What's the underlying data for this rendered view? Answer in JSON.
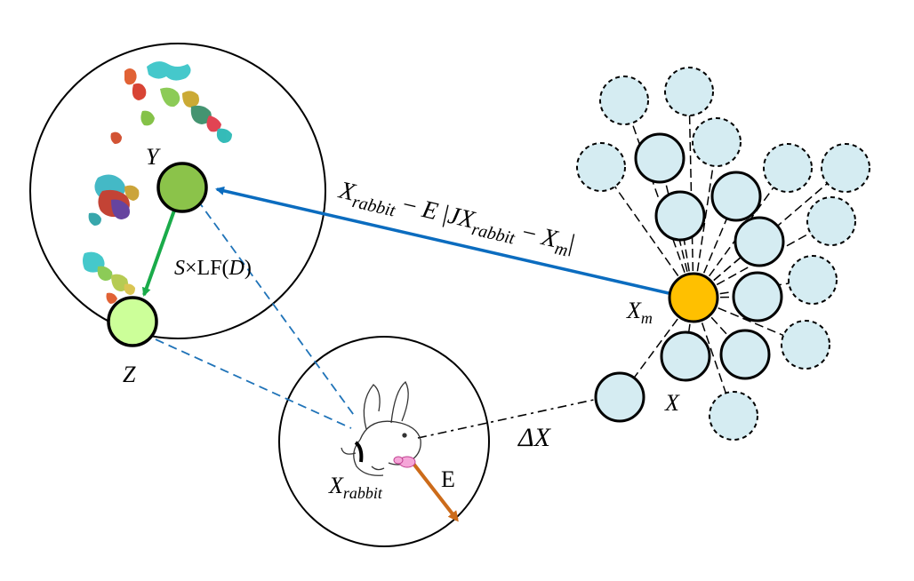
{
  "labels": {
    "y": "Y",
    "z": "Z",
    "x_m": "X",
    "x_m_sub": "m",
    "x": "X",
    "delta_x": "ΔX",
    "x_rabbit": "X",
    "x_rabbit_sub": "rabbit",
    "e": "E"
  },
  "formula_top": {
    "x1": "X",
    "sub1": "rabbit",
    "op1": " − ",
    "e": "E",
    "bar1": " |",
    "j": "J",
    "x2": "X",
    "sub2": "rabbit",
    "op2": " − ",
    "x3": "X",
    "sub3": "m",
    "bar2": "|"
  },
  "formula_levy": {
    "s": "S",
    "times": "×",
    "lf": "LF(",
    "d": "D",
    "close": ")"
  },
  "colors": {
    "green_dark": "#8bc34a",
    "green_light": "#ccff99",
    "orange_node": "#ffc000",
    "blue_node": "#d5ecf2",
    "blue_arrow": "#0b6cbf",
    "green_arrow": "#1aab4a",
    "orange_arrow": "#cc6b1a",
    "dashed_blue": "#1f73b8"
  }
}
